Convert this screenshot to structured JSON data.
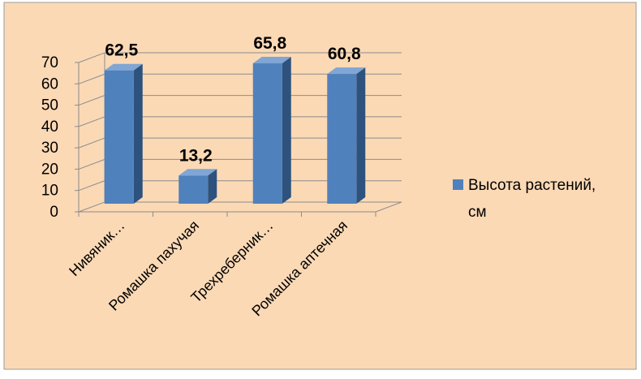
{
  "chart_data": {
    "type": "bar",
    "categories": [
      "Нивяник…",
      "Ромашка пахучая",
      "Трехреберник…",
      "Ромашка аптечная"
    ],
    "series": [
      {
        "name": "Высота растений, см",
        "values": [
          62.5,
          13.2,
          65.8,
          60.8
        ]
      }
    ],
    "data_labels": [
      "62,5",
      "13,2",
      "65,8",
      "60,8"
    ],
    "y_ticks": [
      "0",
      "10",
      "20",
      "30",
      "40",
      "50",
      "60",
      "70"
    ],
    "ylim": [
      0,
      70
    ],
    "grid": true,
    "legend": {
      "position": "right",
      "label_line1": "Высота растений,",
      "label_line2": "см"
    },
    "colors": {
      "background": "#FBD9B5",
      "bar_front": "#4F81BD",
      "bar_side": "#2E527E",
      "bar_top": "#7FA6D4",
      "grid": "#8C8C8C",
      "border": "#9A9A9A",
      "text": "#000000"
    }
  }
}
